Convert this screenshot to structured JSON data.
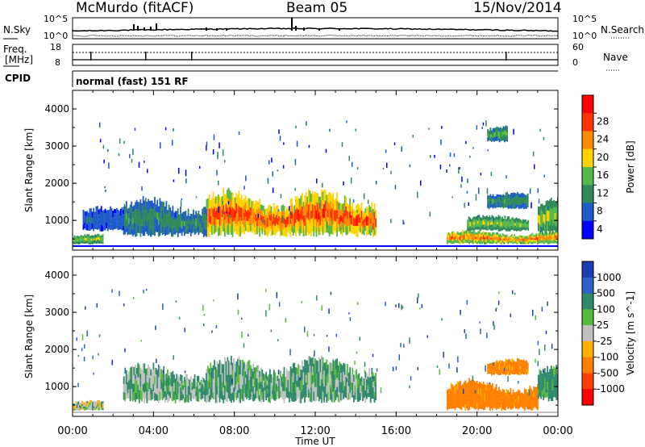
{
  "header": {
    "station": "McMurdo (fitACF)",
    "beam": "Beam 05",
    "date": "15/Nov/2014"
  },
  "summary": {
    "nsky_label": "N.Sky",
    "nsearch_label": "N.Search",
    "noise_ticks": [
      "10^5",
      "10^0"
    ],
    "freq_label": "Freq.",
    "freq_unit": "[MHz]",
    "freq_ticks": [
      "18",
      "8"
    ],
    "nave_label": "Nave",
    "nave_ticks": [
      "60",
      "0"
    ],
    "cpid_label": "CPID",
    "cpid_value": "normal (fast) 151 RF"
  },
  "colors": {
    "power_scale": [
      "#0000ff",
      "#1e5bc8",
      "#2f8a5a",
      "#55b84a",
      "#ffd200",
      "#ff8c00",
      "#ff3300",
      "#ff0000"
    ],
    "velocity_scale": [
      "#1a3db3",
      "#2b62c8",
      "#2f8a6b",
      "#55bb3a",
      "#c0c0c0",
      "#ffb000",
      "#ff8000",
      "#ff4000",
      "#ff0000"
    ]
  },
  "chart_data": [
    {
      "type": "heatmap",
      "name": "Power",
      "ylabel": "Slant Range [km]",
      "yticks": [
        "1000",
        "2000",
        "3000",
        "4000"
      ],
      "ylim": [
        200,
        4500
      ],
      "xlim": [
        "00:00",
        "24:00"
      ],
      "colorbar_label": "Power [dB]",
      "colorbar_ticks": [
        "4",
        "8",
        "12",
        "16",
        "20",
        "24",
        "28"
      ],
      "zlim": [
        0,
        32
      ],
      "blobs": [
        {
          "t0": 6.6,
          "t1": 15.0,
          "r0": 550,
          "r1": 1700,
          "peak": 28
        },
        {
          "t0": 2.5,
          "t1": 6.6,
          "r0": 550,
          "r1": 1500,
          "peak": 10
        },
        {
          "t0": 0.0,
          "t1": 1.5,
          "r0": 350,
          "r1": 600,
          "peak": 16
        },
        {
          "t0": 0.5,
          "t1": 2.5,
          "r0": 700,
          "r1": 1300,
          "peak": 6
        },
        {
          "t0": 18.5,
          "t1": 24.0,
          "r0": 350,
          "r1": 700,
          "peak": 24
        },
        {
          "t0": 19.5,
          "t1": 22.5,
          "r0": 700,
          "r1": 1100,
          "peak": 16
        },
        {
          "t0": 20.5,
          "t1": 22.5,
          "r0": 1300,
          "r1": 1700,
          "peak": 10
        },
        {
          "t0": 23.0,
          "t1": 24.0,
          "r0": 600,
          "r1": 1500,
          "peak": 16
        },
        {
          "t0": 20.5,
          "t1": 21.5,
          "r0": 3100,
          "r1": 3500,
          "peak": 12
        }
      ]
    },
    {
      "type": "heatmap",
      "name": "Velocity",
      "ylabel": "Slant Range [km]",
      "yticks": [
        "1000",
        "2000",
        "3000",
        "4000"
      ],
      "ylim": [
        200,
        4500
      ],
      "xlim": [
        "00:00",
        "24:00"
      ],
      "colorbar_label": "Velocity [m s^-1]",
      "colorbar_ticks": [
        "1000",
        "500",
        "100",
        "25",
        "-25",
        "-100",
        "-500",
        "-1000"
      ],
      "blobs": [
        {
          "t0": 6.6,
          "t1": 15.0,
          "r0": 550,
          "r1": 1700,
          "v": 50
        },
        {
          "t0": 2.5,
          "t1": 6.6,
          "r0": 550,
          "r1": 1500,
          "v": 40
        },
        {
          "t0": 0.0,
          "t1": 1.5,
          "r0": 350,
          "r1": 600,
          "v": 0
        },
        {
          "t0": 18.5,
          "t1": 23.0,
          "r0": 350,
          "r1": 1100,
          "v": -150
        },
        {
          "t0": 20.5,
          "t1": 22.5,
          "r0": 1300,
          "r1": 1700,
          "v": -150
        },
        {
          "t0": 23.0,
          "t1": 24.0,
          "r0": 600,
          "r1": 1500,
          "v": 80
        }
      ]
    }
  ],
  "x_axis": {
    "ticks": [
      "00:00",
      "04:00",
      "08:00",
      "12:00",
      "16:00",
      "20:00",
      "00:00"
    ],
    "label": "Time UT"
  }
}
